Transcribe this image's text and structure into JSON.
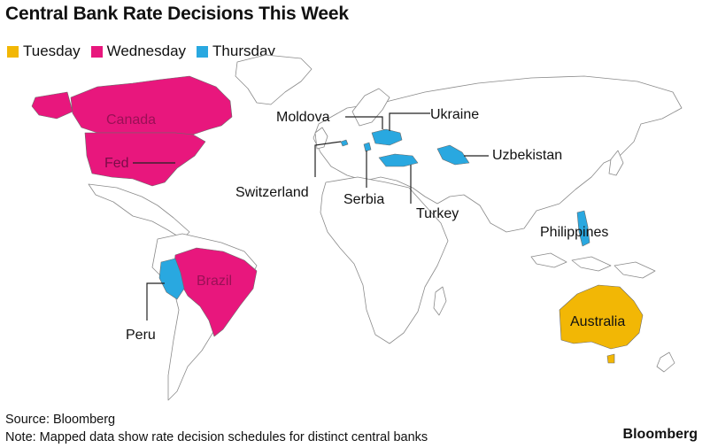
{
  "title": "Central Bank Rate Decisions This Week",
  "legend": [
    {
      "label": "Tuesday",
      "color": "#F2B705"
    },
    {
      "label": "Wednesday",
      "color": "#E8177D"
    },
    {
      "label": "Thursday",
      "color": "#29A8E0"
    }
  ],
  "colors": {
    "land": "#ffffff",
    "border": "#8a8a8a"
  },
  "countries": [
    {
      "name": "Canada",
      "day": "Wednesday"
    },
    {
      "name": "Fed",
      "day": "Wednesday"
    },
    {
      "name": "Brazil",
      "day": "Wednesday"
    },
    {
      "name": "Peru",
      "day": "Thursday"
    },
    {
      "name": "Switzerland",
      "day": "Thursday"
    },
    {
      "name": "Moldova",
      "day": "Thursday"
    },
    {
      "name": "Ukraine",
      "day": "Thursday"
    },
    {
      "name": "Serbia",
      "day": "Thursday"
    },
    {
      "name": "Turkey",
      "day": "Thursday"
    },
    {
      "name": "Uzbekistan",
      "day": "Thursday"
    },
    {
      "name": "Philippines",
      "day": "Thursday"
    },
    {
      "name": "Australia",
      "day": "Tuesday"
    }
  ],
  "footer": {
    "source": "Source: Bloomberg",
    "note": "Note: Mapped data show rate decision schedules for distinct central banks"
  },
  "brand": "Bloomberg"
}
